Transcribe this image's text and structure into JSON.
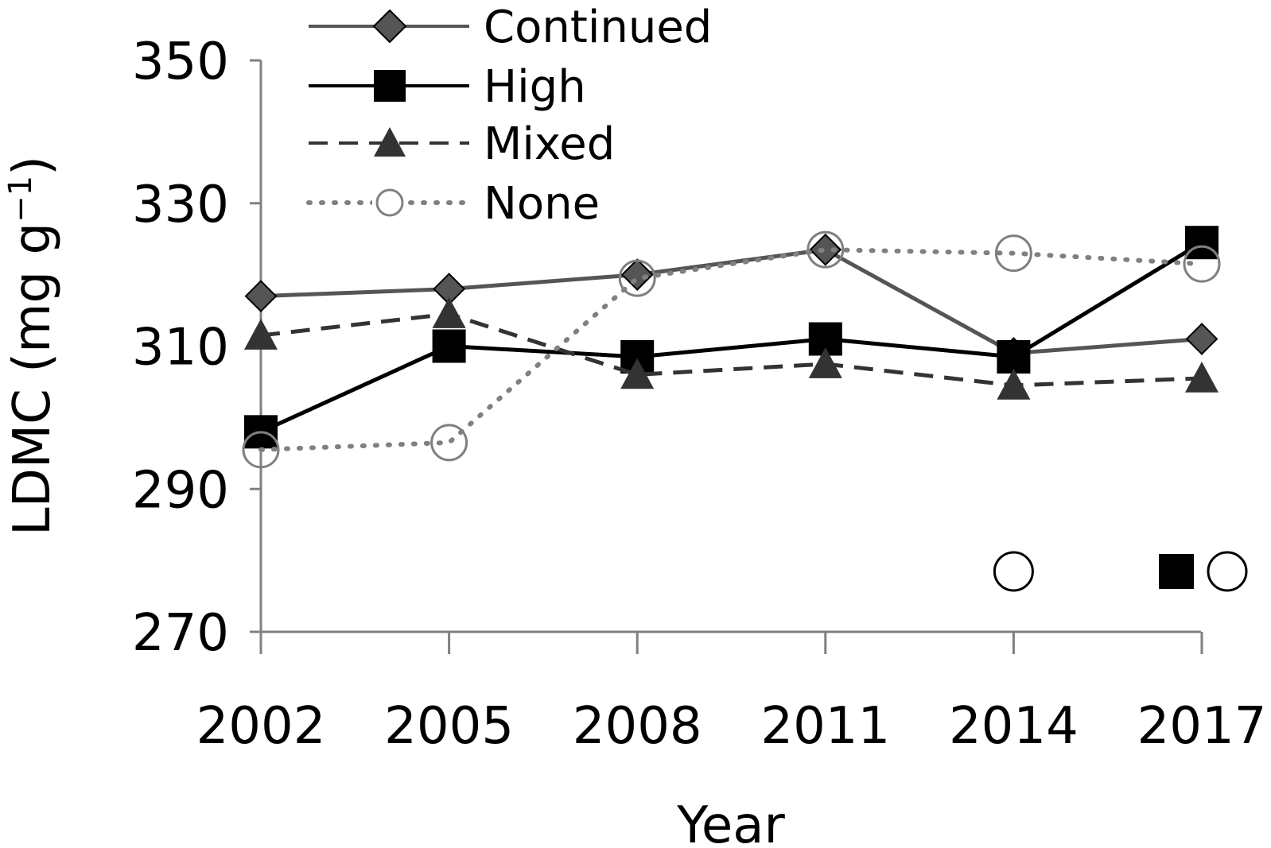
{
  "chart_data": {
    "type": "line",
    "title": "",
    "xlabel": "Year",
    "ylabel": "LDMC (mg g",
    "ylabel_sup": "−1",
    "ylabel_close": ")",
    "ylim": [
      270,
      350
    ],
    "yticks": [
      "270",
      "290",
      "310",
      "330",
      "350"
    ],
    "categories": [
      "2002",
      "2005",
      "2008",
      "2011",
      "2014",
      "2017"
    ],
    "legend_position": "top-left",
    "series": [
      {
        "name": "Continued",
        "marker": "diamond",
        "line": "solid",
        "color": "#555555",
        "values": [
          317,
          318,
          320,
          323.5,
          309,
          311
        ]
      },
      {
        "name": "High",
        "marker": "square",
        "line": "solid",
        "color": "#000000",
        "values": [
          298,
          310,
          308.5,
          311,
          308.5,
          324.5
        ]
      },
      {
        "name": "Mixed",
        "marker": "triangle",
        "line": "dashed",
        "color": "#333333",
        "values": [
          311.5,
          314.5,
          306,
          307.5,
          304.5,
          305.5
        ]
      },
      {
        "name": "None",
        "marker": "circle-open",
        "line": "dotted",
        "color": "#808080",
        "values": [
          295.5,
          296.5,
          319.5,
          323.5,
          323,
          321.5
        ]
      }
    ],
    "significance_markers": [
      {
        "category": "2014",
        "symbols": [
          "circle-open"
        ]
      },
      {
        "category": "2017",
        "symbols": [
          "square",
          "circle-open"
        ]
      }
    ]
  }
}
